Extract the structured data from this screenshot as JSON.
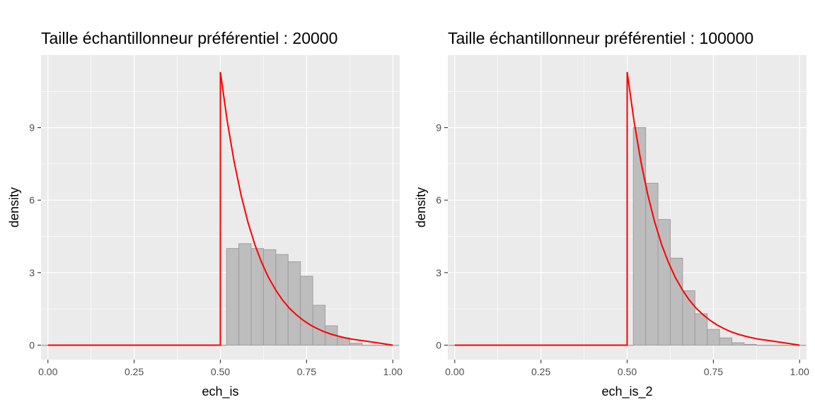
{
  "colors": {
    "panel_background": "#ebebeb",
    "grid": "#ffffff",
    "bar_fill": "#bdbdbd",
    "bar_outline": "#9e9e9e",
    "density_line": "#ff0000",
    "tick": "#333333",
    "tick_text": "#4d4d4d"
  },
  "chart_data": [
    {
      "type": "bar",
      "title": "Taille échantillonneur préférentiel : 20000",
      "xlabel": "ech_is",
      "ylabel": "density",
      "xlim": [
        -0.02,
        1.02
      ],
      "ylim": [
        -0.6,
        12.0
      ],
      "x_ticks": [
        0.0,
        0.25,
        0.5,
        0.75,
        1.0
      ],
      "x_tick_labels": [
        "0.00",
        "0.25",
        "0.50",
        "0.75",
        "1.00"
      ],
      "y_ticks": [
        0,
        3,
        6,
        9
      ],
      "y_tick_labels": [
        "0",
        "3",
        "6",
        "9"
      ],
      "grid": true,
      "histogram": {
        "bin_width": 0.0357,
        "bin_starts": [
          -0.0179,
          0.0179,
          0.0536,
          0.0893,
          0.125,
          0.1607,
          0.1964,
          0.2321,
          0.2679,
          0.3036,
          0.3393,
          0.375,
          0.4107,
          0.4464,
          0.4821,
          0.5179,
          0.5536,
          0.5893,
          0.625,
          0.6607,
          0.6964,
          0.7321,
          0.7679,
          0.8036,
          0.8393,
          0.875,
          0.9107,
          0.9464,
          0.9821
        ],
        "values": [
          0,
          0,
          0,
          0,
          0,
          0,
          0,
          0,
          0,
          0,
          0,
          0,
          0,
          0,
          0,
          4.0,
          4.2,
          4.0,
          3.95,
          3.75,
          3.45,
          2.85,
          1.65,
          0.8,
          0.3,
          0.08,
          0,
          0,
          0
        ]
      },
      "density_curve": {
        "x": [
          0.0,
          0.4999,
          0.5,
          0.52,
          0.54,
          0.56,
          0.58,
          0.6,
          0.62,
          0.64,
          0.66,
          0.68,
          0.7,
          0.72,
          0.74,
          0.76,
          0.78,
          0.8,
          0.82,
          0.84,
          0.86,
          0.88,
          0.9,
          0.92,
          0.95,
          1.0
        ],
        "y": [
          0,
          0,
          11.3,
          9.26,
          7.58,
          6.21,
          5.08,
          4.16,
          3.41,
          2.79,
          2.29,
          1.87,
          1.53,
          1.26,
          1.03,
          0.84,
          0.69,
          0.56,
          0.46,
          0.38,
          0.31,
          0.25,
          0.21,
          0.17,
          0.11,
          0.0
        ]
      }
    },
    {
      "type": "bar",
      "title": "Taille échantillonneur préférentiel : 100000",
      "xlabel": "ech_is_2",
      "ylabel": "density",
      "xlim": [
        -0.02,
        1.02
      ],
      "ylim": [
        -0.6,
        12.0
      ],
      "x_ticks": [
        0.0,
        0.25,
        0.5,
        0.75,
        1.0
      ],
      "x_tick_labels": [
        "0.00",
        "0.25",
        "0.50",
        "0.75",
        "1.00"
      ],
      "y_ticks": [
        0,
        3,
        6,
        9
      ],
      "y_tick_labels": [
        "0",
        "3",
        "6",
        "9"
      ],
      "grid": true,
      "histogram": {
        "bin_width": 0.0357,
        "bin_starts": [
          -0.0179,
          0.0179,
          0.0536,
          0.0893,
          0.125,
          0.1607,
          0.1964,
          0.2321,
          0.2679,
          0.3036,
          0.3393,
          0.375,
          0.4107,
          0.4464,
          0.4821,
          0.5179,
          0.5536,
          0.5893,
          0.625,
          0.6607,
          0.6964,
          0.7321,
          0.7679,
          0.8036,
          0.8393,
          0.875,
          0.9107,
          0.9464,
          0.9821
        ],
        "values": [
          0,
          0,
          0,
          0,
          0,
          0,
          0,
          0,
          0,
          0,
          0,
          0,
          0,
          0,
          0,
          9.0,
          6.7,
          5.2,
          3.6,
          2.25,
          1.3,
          0.65,
          0.3,
          0.1,
          0.03,
          0,
          0,
          0,
          0
        ]
      },
      "density_curve": {
        "x": [
          0.0,
          0.4999,
          0.5,
          0.52,
          0.54,
          0.56,
          0.58,
          0.6,
          0.62,
          0.64,
          0.66,
          0.68,
          0.7,
          0.72,
          0.74,
          0.76,
          0.78,
          0.8,
          0.82,
          0.84,
          0.86,
          0.88,
          0.9,
          0.92,
          0.95,
          1.0
        ],
        "y": [
          0,
          0,
          11.3,
          9.26,
          7.58,
          6.21,
          5.08,
          4.16,
          3.41,
          2.79,
          2.29,
          1.87,
          1.53,
          1.26,
          1.03,
          0.84,
          0.69,
          0.56,
          0.46,
          0.38,
          0.31,
          0.25,
          0.21,
          0.17,
          0.11,
          0.0
        ]
      }
    }
  ]
}
